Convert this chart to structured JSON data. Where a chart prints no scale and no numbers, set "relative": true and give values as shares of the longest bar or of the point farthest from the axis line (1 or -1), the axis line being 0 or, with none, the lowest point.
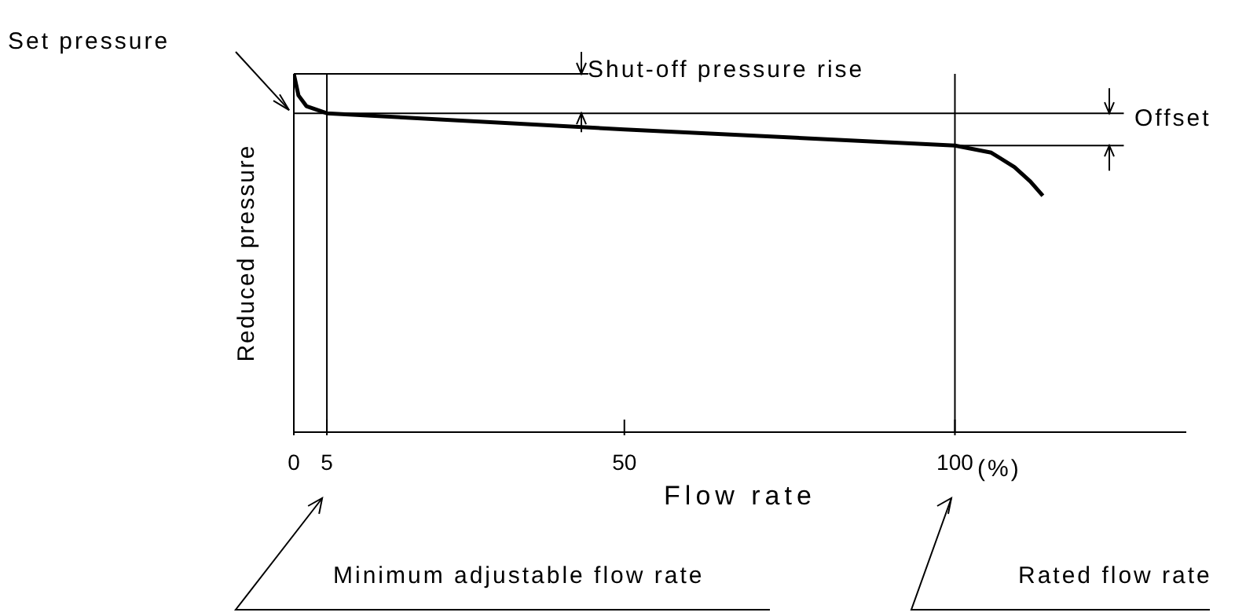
{
  "chart_data": {
    "type": "line",
    "relative": true,
    "xlabel": "Flow rate",
    "ylabel": "Reduced pressure",
    "xlim": [
      0,
      135
    ],
    "xticks": [
      0,
      5,
      50,
      100
    ],
    "series": [
      {
        "color": "#000000",
        "x": [
          0,
          0.7,
          1.9,
          5,
          50,
          100,
          105.5,
          109,
          111.4,
          113.3
        ],
        "values": [
          1,
          0.94,
          0.91,
          0.89,
          0.845,
          0.8,
          0.78,
          0.74,
          0.7,
          0.66
        ]
      }
    ],
    "ref_lines": [
      {
        "axis": "x",
        "value": 5,
        "color": "#000000"
      },
      {
        "axis": "x",
        "value": 100,
        "color": "#000000"
      },
      {
        "axis": "y",
        "value": 1,
        "color": "#000000"
      },
      {
        "axis": "y",
        "value": 0.89,
        "color": "#000000"
      },
      {
        "axis": "y",
        "value": 0.8,
        "color": "#000000"
      }
    ],
    "annotations": [
      "Set pressure",
      "Shut-off pressure rise",
      "Offset",
      "Minimum adjustable flow rate",
      "Rated flow rate",
      "(%)"
    ],
    "marker": "none",
    "line_style": "solid"
  }
}
